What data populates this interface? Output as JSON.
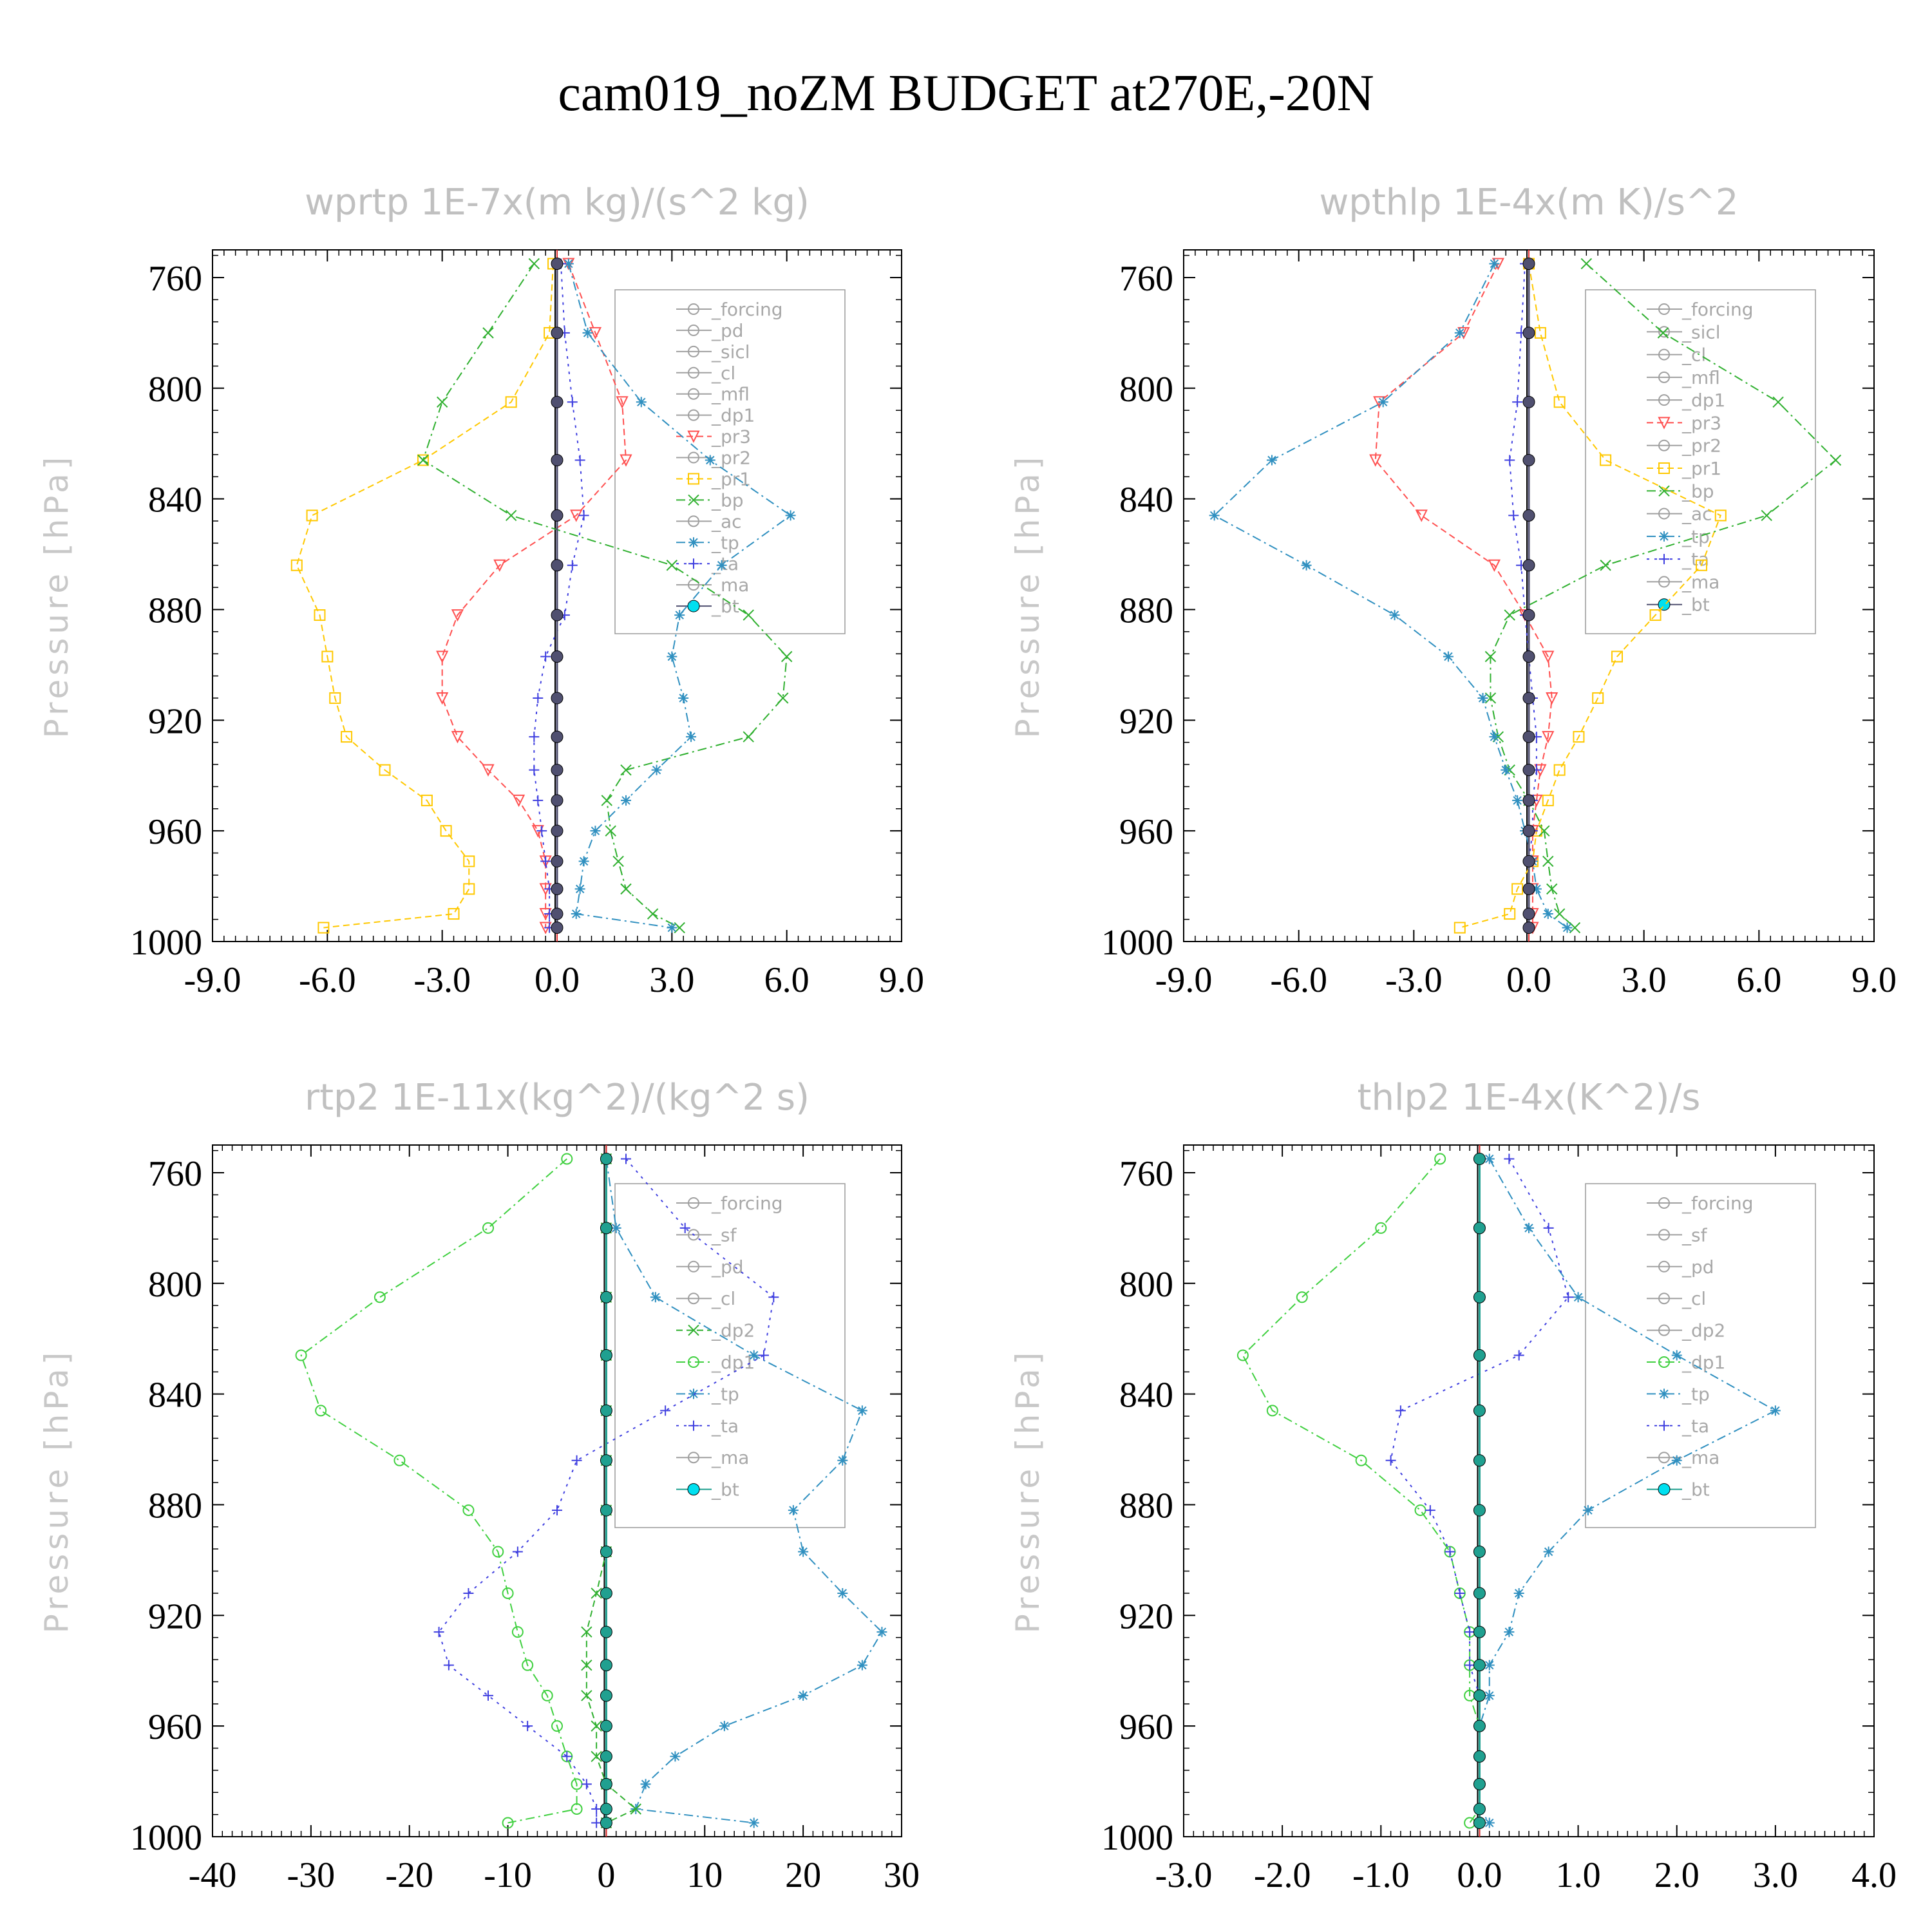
{
  "title": "cam019_noZM  BUDGET at270E,-20N",
  "chart_data": [
    {
      "type": "line",
      "title": "wprtp  1E-7x(m kg)/(s^2 kg)",
      "ylabel": "Pressure [hPa]",
      "xlim": [
        -9,
        9
      ],
      "xticks": [
        "-9.0",
        "-6.0",
        "-3.0",
        "0.0",
        "3.0",
        "6.0",
        "9.0"
      ],
      "xtick_values": [
        -9,
        -6,
        -3,
        0,
        3,
        6,
        9
      ],
      "ylim": [
        750,
        1000
      ],
      "yticks": [
        "760",
        "800",
        "840",
        "880",
        "920",
        "960",
        "1000"
      ],
      "ytick_values": [
        760,
        800,
        840,
        880,
        920,
        960,
        1000
      ],
      "levels": [
        755,
        780,
        805,
        826,
        846,
        864,
        882,
        897,
        912,
        926,
        938,
        949,
        960,
        971,
        981,
        990,
        995
      ],
      "legend": [
        "_forcing",
        "_pd",
        "_sicl",
        "_cl",
        "_mfl",
        "_dp1",
        "_pr3",
        "_pr2",
        "_pr1",
        "_bp",
        "_ac",
        "_tp",
        "_ta",
        "_ma",
        "_bt"
      ],
      "series": [
        {
          "name": "_pr1",
          "color": "#ffc800",
          "dash": "10,6",
          "marker": "square",
          "values": [
            -0.1,
            -0.2,
            -1.2,
            -3.5,
            -6.4,
            -6.8,
            -6.2,
            -6.0,
            -5.8,
            -5.5,
            -4.5,
            -3.4,
            -2.9,
            -2.3,
            -2.3,
            -2.7,
            -6.1
          ]
        },
        {
          "name": "_pr3",
          "color": "#ff5050",
          "dash": "10,6",
          "marker": "tri-down",
          "values": [
            0.3,
            1.0,
            1.7,
            1.8,
            0.5,
            -1.5,
            -2.6,
            -3.0,
            -3.0,
            -2.6,
            -1.8,
            -1.0,
            -0.5,
            -0.3,
            -0.3,
            -0.3,
            -0.3
          ]
        },
        {
          "name": "_bp",
          "color": "#30b030",
          "dash": "14,6,3,6",
          "marker": "x",
          "values": [
            -0.6,
            -1.8,
            -3.0,
            -3.5,
            -1.2,
            3.0,
            5.0,
            6.0,
            5.9,
            5.0,
            1.8,
            1.3,
            1.4,
            1.6,
            1.8,
            2.5,
            3.2
          ]
        },
        {
          "name": "_tp",
          "color": "#3090c0",
          "dash": "14,6,3,6",
          "marker": "star",
          "values": [
            0.3,
            0.8,
            2.2,
            4.0,
            6.1,
            4.3,
            3.2,
            3.0,
            3.3,
            3.5,
            2.6,
            1.8,
            1.0,
            0.7,
            0.6,
            0.5,
            3.0
          ]
        },
        {
          "name": "_ta",
          "color": "#4040e0",
          "dash": "4,8",
          "marker": "plus",
          "values": [
            0.1,
            0.2,
            0.4,
            0.6,
            0.7,
            0.4,
            0.2,
            -0.3,
            -0.5,
            -0.6,
            -0.6,
            -0.5,
            -0.4,
            -0.3,
            -0.2,
            -0.2,
            -0.2
          ]
        },
        {
          "name": "_bt",
          "color": "#505070",
          "dash": "",
          "marker": "dot",
          "values": [
            0,
            0,
            0,
            0,
            0,
            0,
            0,
            0,
            0,
            0,
            0,
            0,
            0,
            0,
            0,
            0,
            0
          ]
        }
      ]
    },
    {
      "type": "line",
      "title": "wpthlp  1E-4x(m K)/s^2",
      "ylabel": "Pressure [hPa]",
      "xlim": [
        -9,
        9
      ],
      "xticks": [
        "-9.0",
        "-6.0",
        "-3.0",
        "0.0",
        "3.0",
        "6.0",
        "9.0"
      ],
      "xtick_values": [
        -9,
        -6,
        -3,
        0,
        3,
        6,
        9
      ],
      "ylim": [
        750,
        1000
      ],
      "yticks": [
        "760",
        "800",
        "840",
        "880",
        "920",
        "960",
        "1000"
      ],
      "ytick_values": [
        760,
        800,
        840,
        880,
        920,
        960,
        1000
      ],
      "levels": [
        755,
        780,
        805,
        826,
        846,
        864,
        882,
        897,
        912,
        926,
        938,
        949,
        960,
        971,
        981,
        990,
        995
      ],
      "legend": [
        "_forcing",
        "_sicl",
        "_cl",
        "_mfl",
        "_dp1",
        "_pr3",
        "_pr2",
        "_pr1",
        "_bp",
        "_ac",
        "_tp",
        "_ta",
        "_ma",
        "_bt"
      ],
      "series": [
        {
          "name": "_pr1",
          "color": "#ffc800",
          "dash": "10,6",
          "marker": "square",
          "values": [
            0.0,
            0.3,
            0.8,
            2.0,
            5.0,
            4.5,
            3.3,
            2.3,
            1.8,
            1.3,
            0.8,
            0.5,
            0.2,
            0.1,
            -0.3,
            -0.5,
            -1.8
          ]
        },
        {
          "name": "_pr3",
          "color": "#ff5050",
          "dash": "10,6",
          "marker": "tri-down",
          "values": [
            -0.8,
            -1.7,
            -3.9,
            -4.0,
            -2.8,
            -0.9,
            -0.1,
            0.5,
            0.6,
            0.5,
            0.3,
            0.2,
            0.1,
            0.1,
            0.1,
            0.1,
            0.1
          ]
        },
        {
          "name": "_bp",
          "color": "#30b030",
          "dash": "14,6,3,6",
          "marker": "x",
          "values": [
            1.5,
            3.5,
            6.5,
            8.0,
            6.2,
            2.0,
            -0.5,
            -1.0,
            -1.0,
            -0.8,
            -0.5,
            0.0,
            0.4,
            0.5,
            0.6,
            0.8,
            1.2
          ]
        },
        {
          "name": "_tp",
          "color": "#3090c0",
          "dash": "14,6,3,6",
          "marker": "star",
          "values": [
            -0.9,
            -1.8,
            -3.8,
            -6.7,
            -8.2,
            -5.8,
            -3.5,
            -2.1,
            -1.2,
            -0.9,
            -0.6,
            -0.3,
            -0.1,
            0.1,
            0.2,
            0.5,
            1.0
          ]
        },
        {
          "name": "_ta",
          "color": "#4040e0",
          "dash": "4,8",
          "marker": "plus",
          "values": [
            -0.1,
            -0.2,
            -0.3,
            -0.5,
            -0.4,
            -0.2,
            -0.1,
            0.0,
            0.1,
            0.2,
            0.2,
            0.1,
            0.1,
            0.0,
            0.0,
            0.0,
            0.0
          ]
        },
        {
          "name": "_bt",
          "color": "#505070",
          "dash": "",
          "marker": "dot",
          "values": [
            0,
            0,
            0,
            0,
            0,
            0,
            0,
            0,
            0,
            0,
            0,
            0,
            0,
            0,
            0,
            0,
            0
          ]
        }
      ]
    },
    {
      "type": "line",
      "title": "rtp2  1E-11x(kg^2)/(kg^2 s)",
      "ylabel": "Pressure [hPa]",
      "xlim": [
        -40,
        30
      ],
      "xticks": [
        "-40",
        "-30",
        "-20",
        "-10",
        "0",
        "10",
        "20",
        "30"
      ],
      "xtick_values": [
        -40,
        -30,
        -20,
        -10,
        0,
        10,
        20,
        30
      ],
      "ylim": [
        750,
        1000
      ],
      "yticks": [
        "760",
        "800",
        "840",
        "880",
        "920",
        "960",
        "1000"
      ],
      "ytick_values": [
        760,
        800,
        840,
        880,
        920,
        960,
        1000
      ],
      "levels": [
        755,
        780,
        805,
        826,
        846,
        864,
        882,
        897,
        912,
        926,
        938,
        949,
        960,
        971,
        981,
        990,
        995
      ],
      "legend": [
        "_forcing",
        "_sf",
        "_pd",
        "_cl",
        "_dp2",
        "_dp1",
        "_tp",
        "_ta",
        "_ma",
        "_bt"
      ],
      "series": [
        {
          "name": "_dp1",
          "color": "#40d040",
          "dash": "14,6,3,6",
          "marker": "circle",
          "values": [
            -4,
            -12,
            -23,
            -31,
            -29,
            -21,
            -14,
            -11,
            -10,
            -9,
            -8,
            -6,
            -5,
            -4,
            -3,
            -3,
            -10
          ]
        },
        {
          "name": "_tp",
          "color": "#3090c0",
          "dash": "14,6,3,6",
          "marker": "star",
          "values": [
            0,
            1,
            5,
            15,
            26,
            24,
            19,
            20,
            24,
            28,
            26,
            20,
            12,
            7,
            4,
            3,
            15
          ]
        },
        {
          "name": "_ta",
          "color": "#4040e0",
          "dash": "4,8",
          "marker": "plus",
          "values": [
            2,
            8,
            17,
            16,
            6,
            -3,
            -5,
            -9,
            -14,
            -17,
            -16,
            -12,
            -8,
            -4,
            -2,
            -1,
            -1
          ]
        },
        {
          "name": "_dp2",
          "color": "#30b030",
          "dash": "10,6",
          "marker": "x",
          "values": [
            0,
            0,
            0,
            0,
            0,
            0,
            0,
            0,
            -1,
            -2,
            -2,
            -2,
            -1,
            -1,
            0,
            3,
            0
          ]
        },
        {
          "name": "_bt",
          "color": "#20a090",
          "dash": "",
          "marker": "dot",
          "values": [
            0,
            0,
            0,
            0,
            0,
            0,
            0,
            0,
            0,
            0,
            0,
            0,
            0,
            0,
            0,
            0,
            0
          ]
        }
      ]
    },
    {
      "type": "line",
      "title": "thlp2  1E-4x(K^2)/s",
      "ylabel": "Pressure [hPa]",
      "xlim": [
        -3,
        4
      ],
      "xticks": [
        "-3.0",
        "-2.0",
        "-1.0",
        "0.0",
        "1.0",
        "2.0",
        "3.0",
        "4.0"
      ],
      "xtick_values": [
        -3,
        -2,
        -1,
        0,
        1,
        2,
        3,
        4
      ],
      "ylim": [
        750,
        1000
      ],
      "yticks": [
        "760",
        "800",
        "840",
        "880",
        "920",
        "960",
        "1000"
      ],
      "ytick_values": [
        760,
        800,
        840,
        880,
        920,
        960,
        1000
      ],
      "levels": [
        755,
        780,
        805,
        826,
        846,
        864,
        882,
        897,
        912,
        926,
        938,
        949,
        960,
        971,
        981,
        990,
        995
      ],
      "legend": [
        "_forcing",
        "_sf",
        "_pd",
        "_cl",
        "_dp2",
        "_dp1",
        "_tp",
        "_ta",
        "_ma",
        "_bt"
      ],
      "series": [
        {
          "name": "_dp1",
          "color": "#40d040",
          "dash": "14,6,3,6",
          "marker": "circle",
          "values": [
            -0.4,
            -1.0,
            -1.8,
            -2.4,
            -2.1,
            -1.2,
            -0.6,
            -0.3,
            -0.2,
            -0.1,
            -0.1,
            -0.1,
            0,
            0,
            0,
            0,
            -0.1
          ]
        },
        {
          "name": "_tp",
          "color": "#3090c0",
          "dash": "14,6,3,6",
          "marker": "star",
          "values": [
            0.1,
            0.5,
            1.0,
            2.0,
            3.0,
            2.0,
            1.1,
            0.7,
            0.4,
            0.3,
            0.1,
            0.1,
            0.0,
            0.0,
            0.0,
            0.0,
            0.1
          ]
        },
        {
          "name": "_ta",
          "color": "#4040e0",
          "dash": "4,8",
          "marker": "plus",
          "values": [
            0.3,
            0.7,
            0.9,
            0.4,
            -0.8,
            -0.9,
            -0.5,
            -0.3,
            -0.2,
            -0.1,
            -0.1,
            0.0,
            0.0,
            0.0,
            0.0,
            0.0,
            0.0
          ]
        },
        {
          "name": "_bt",
          "color": "#20a090",
          "dash": "",
          "marker": "dot",
          "values": [
            0,
            0,
            0,
            0,
            0,
            0,
            0,
            0,
            0,
            0,
            0,
            0,
            0,
            0,
            0,
            0,
            0
          ]
        }
      ]
    }
  ]
}
